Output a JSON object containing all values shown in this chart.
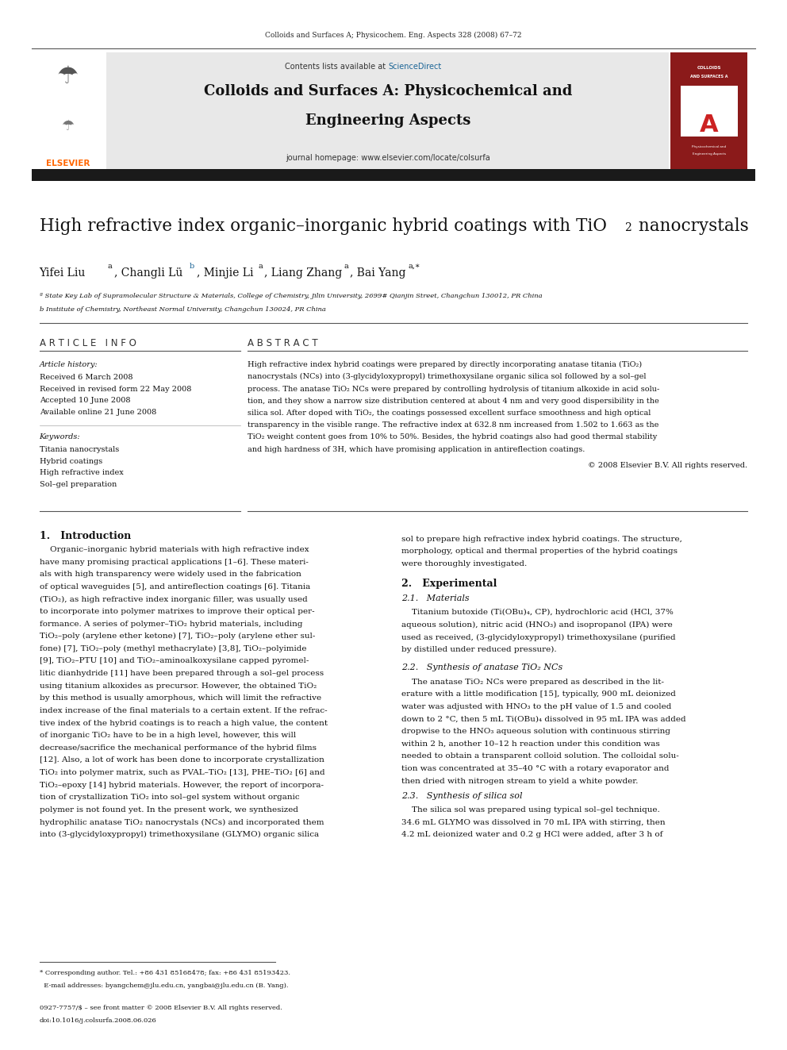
{
  "page_width": 9.92,
  "page_height": 13.23,
  "bg_color": "#ffffff",
  "top_citation": "Colloids and Surfaces A; Physicochem. Eng. Aspects 328 (2008) 67–72",
  "journal_header_bg": "#e8e8e8",
  "journal_name_line1": "Colloids and Surfaces A: Physicochemical and",
  "journal_name_line2": "Engineering Aspects",
  "contents_text": "Contents lists available at ",
  "sciencedirect_text": "ScienceDirect",
  "sciencedirect_color": "#1a6496",
  "journal_homepage": "journal homepage: www.elsevier.com/locate/colsurfa",
  "elsevier_color": "#ff6600",
  "dark_bar_color": "#1a1a1a",
  "affil_a": "ª State Key Lab of Supramolecular Structure & Materials, College of Chemistry, Jilin University, 2699# Qianjin Street, Changchun 130012, PR China",
  "affil_b": "b Institute of Chemistry, Northeast Normal University, Changchun 130024, PR China",
  "article_info_title": "A R T I C L E   I N F O",
  "abstract_title": "A B S T R A C T",
  "article_history": "Article history:",
  "received": "Received 6 March 2008",
  "received_revised": "Received in revised form 22 May 2008",
  "accepted": "Accepted 10 June 2008",
  "available": "Available online 21 June 2008",
  "keywords_title": "Keywords:",
  "keyword1": "Titania nanocrystals",
  "keyword2": "Hybrid coatings",
  "keyword3": "High refractive index",
  "keyword4": "Sol–gel preparation",
  "copyright": "© 2008 Elsevier B.V. All rights reserved.",
  "intro_title": "1.   Introduction",
  "experimental_title": "2.   Experimental",
  "materials_title": "2.1.   Materials",
  "synthesis_title": "2.2.   Synthesis of anatase TiO₂ NCs",
  "silica_title": "2.3.   Synthesis of silica sol",
  "footnote_line1": "* Corresponding author. Tel.: +86 431 85168478; fax: +86 431 85193423.",
  "footnote_line2": "  E-mail addresses: byangchem@jlu.edu.cn, yangbai@jlu.edu.cn (B. Yang).",
  "issn_text": "0927-7757/$ – see front matter © 2008 Elsevier B.V. All rights reserved.",
  "doi_text": "doi:10.1016/j.colsurfa.2008.06.026"
}
